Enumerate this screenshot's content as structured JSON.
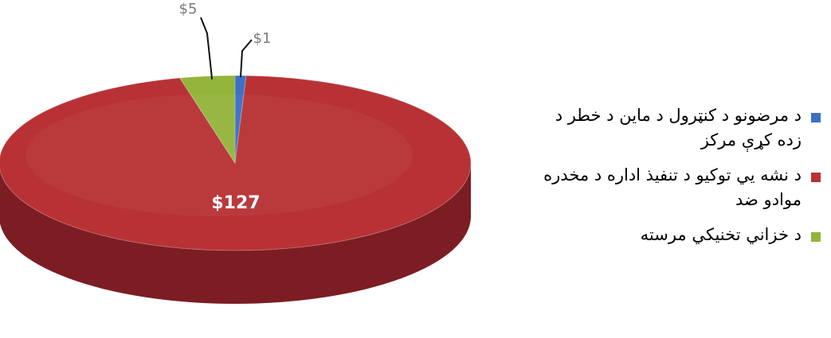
{
  "colors": {
    "blue": "#3d6fc6",
    "red": "#b83235",
    "green": "#93b53b",
    "side_red": "#7c1d23",
    "side_green": "#62801f",
    "side_blue": "#2a4b87",
    "text": "#000000",
    "label_leader": "#111111",
    "white": "#ffffff",
    "muted": "#7a7a7a"
  },
  "chart_data": {
    "type": "pie",
    "slices": [
      {
        "label": "د مرضونو د کنټرول د ماین د خطر د زده کړې مرکز",
        "value": 1,
        "display": "$1",
        "color": "#3d6fc6",
        "sideColor": "#2a4b87",
        "labelColor": "#7a7a7a"
      },
      {
        "label": "د نشه يي توکيو د تنفیذ اداره د مخدره موادو ضد",
        "value": 127,
        "display": "$127",
        "color": "#b83235",
        "sideColor": "#7c1d23",
        "labelColor": "#ffffff"
      },
      {
        "label": "د خزاني تخنيکي مرسته",
        "value": 5,
        "display": "$5",
        "color": "#93b53b",
        "sideColor": "#62801f",
        "labelColor": "#7a7a7a"
      }
    ],
    "legend_position": "right"
  }
}
